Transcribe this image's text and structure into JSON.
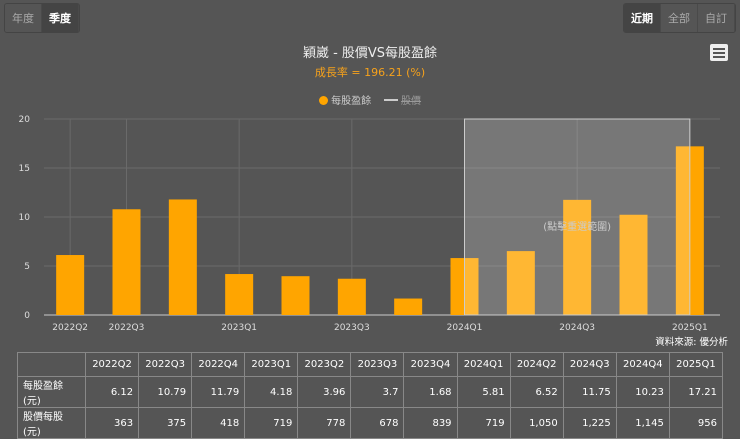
{
  "period_buttons": [
    "年度",
    "季度"
  ],
  "range_buttons": [
    "近期",
    "全部",
    "自訂"
  ],
  "chart_data": {
    "type": "bar",
    "title": "穎崴 - 股價VS每股盈餘",
    "subtitle": "成長率 = 196.21 (%)",
    "legend": [
      {
        "name": "每股盈餘",
        "color": "#ffa500",
        "symbol": "circle"
      },
      {
        "name": "股價",
        "color": "#ccc",
        "symbol": "line",
        "hidden": true
      }
    ],
    "categories": [
      "2022Q2",
      "2022Q3",
      "2022Q4",
      "2023Q1",
      "2023Q2",
      "2023Q3",
      "2023Q4",
      "2024Q1",
      "2024Q2",
      "2024Q3",
      "2024Q4",
      "2025Q1"
    ],
    "xtick_labels": [
      "2022Q2",
      "2022Q3",
      "2023Q1",
      "2023Q3",
      "2024Q1",
      "2024Q3",
      "2025Q1"
    ],
    "series": [
      {
        "name": "每股盈餘",
        "values": [
          6.12,
          10.79,
          11.79,
          4.18,
          3.96,
          3.7,
          1.68,
          5.81,
          6.52,
          11.75,
          10.23,
          17.21
        ]
      }
    ],
    "yticks": [
      0,
      5,
      10,
      15,
      20
    ],
    "ylim": [
      0,
      20
    ],
    "highlight_range": [
      "2024Q1",
      "2025Q1"
    ],
    "highlight_label": "(點擊重選範圍)",
    "bar_color": "#ffa500"
  },
  "source": "資料來源: 優分析",
  "table": {
    "headers": [
      "",
      "2022Q2",
      "2022Q3",
      "2022Q4",
      "2023Q1",
      "2023Q2",
      "2023Q3",
      "2023Q4",
      "2024Q1",
      "2024Q2",
      "2024Q3",
      "2024Q4",
      "2025Q1"
    ],
    "rows": [
      [
        "每股盈餘(元)",
        "6.12",
        "10.79",
        "11.79",
        "4.18",
        "3.96",
        "3.7",
        "1.68",
        "5.81",
        "6.52",
        "11.75",
        "10.23",
        "17.21"
      ],
      [
        "股價每股(元)",
        "363",
        "375",
        "418",
        "719",
        "778",
        "678",
        "839",
        "719",
        "1,050",
        "1,225",
        "1,145",
        "956"
      ]
    ]
  }
}
